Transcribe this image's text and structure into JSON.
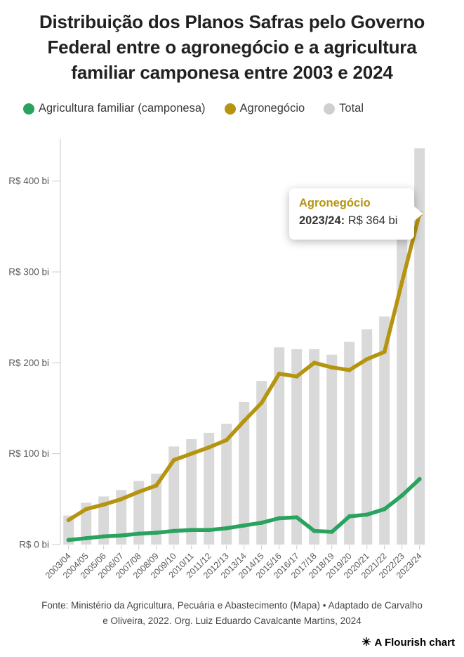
{
  "title": "Distribuição dos Planos Safras pelo Governo Federal entre o agronegócio e a agricultura familiar camponesa entre 2003 e 2024",
  "legend": [
    {
      "label": "Agricultura familiar (camponesa)",
      "color": "#29a35e"
    },
    {
      "label": "Agronegócio",
      "color": "#b5940f"
    },
    {
      "label": "Total",
      "color": "#cfcfcf"
    }
  ],
  "tooltip": {
    "title": "Agronegócio",
    "title_color": "#b5940f",
    "year_label": "2023/24:",
    "value_label": "R$ 364 bi"
  },
  "footer": {
    "source": "Fonte: Ministério da Agricultura, Pecuária e Abastecimento (Mapa) • Adaptado de Carvalho e Oliveira, 2022. Org. Luiz Eduardo Cavalcante Martins, 2024",
    "credit_icon": "✳",
    "credit": "A Flourish chart"
  },
  "chart_data": {
    "type": "bar",
    "subtype": "bars-with-lines",
    "categories": [
      "2003/04",
      "2004/05",
      "2005/06",
      "2006/07",
      "2007/08",
      "2008/09",
      "2009/10",
      "2010/11",
      "2011/12",
      "2012/13",
      "2013/14",
      "2014/15",
      "2015/16",
      "2016/17",
      "2017/18",
      "2018/19",
      "2019/20",
      "2020/21",
      "2021/22",
      "2022/23",
      "2023/24"
    ],
    "series": [
      {
        "name": "Agricultura familiar (camponesa)",
        "render": "line",
        "color": "#29a35e",
        "values": [
          5,
          7,
          9,
          10,
          12,
          13,
          15,
          16,
          16,
          18,
          21,
          24,
          29,
          30,
          15,
          14,
          31,
          33,
          39,
          54,
          72
        ]
      },
      {
        "name": "Agronegócio",
        "render": "line",
        "color": "#b5940f",
        "values": [
          27,
          39,
          44,
          50,
          58,
          65,
          93,
          100,
          107,
          115,
          136,
          156,
          188,
          185,
          200,
          195,
          192,
          204,
          212,
          289,
          364
        ]
      },
      {
        "name": "Total",
        "render": "bar",
        "color": "#d9d9d9",
        "values": [
          32,
          46,
          53,
          60,
          70,
          78,
          108,
          116,
          123,
          133,
          157,
          180,
          217,
          215,
          215,
          209,
          223,
          237,
          251,
          343,
          436
        ]
      }
    ],
    "highlight": {
      "series": "Agronegócio",
      "category": "2023/24",
      "value": 364
    },
    "y_axis": {
      "tick_values": [
        0,
        100,
        200,
        300,
        400
      ],
      "tick_labels": [
        "R$ 0 bi",
        "R$ 100 bi",
        "R$ 200 bi",
        "R$ 300 bi",
        "R$ 400 bi"
      ],
      "range": [
        0,
        450
      ]
    },
    "x_axis": {
      "label_rotation": -45
    },
    "grid": false,
    "legend_position": "top",
    "axis_color": "#c9c9c9",
    "tick_color": "#cccccc",
    "label_color": "#5a5a5a"
  }
}
